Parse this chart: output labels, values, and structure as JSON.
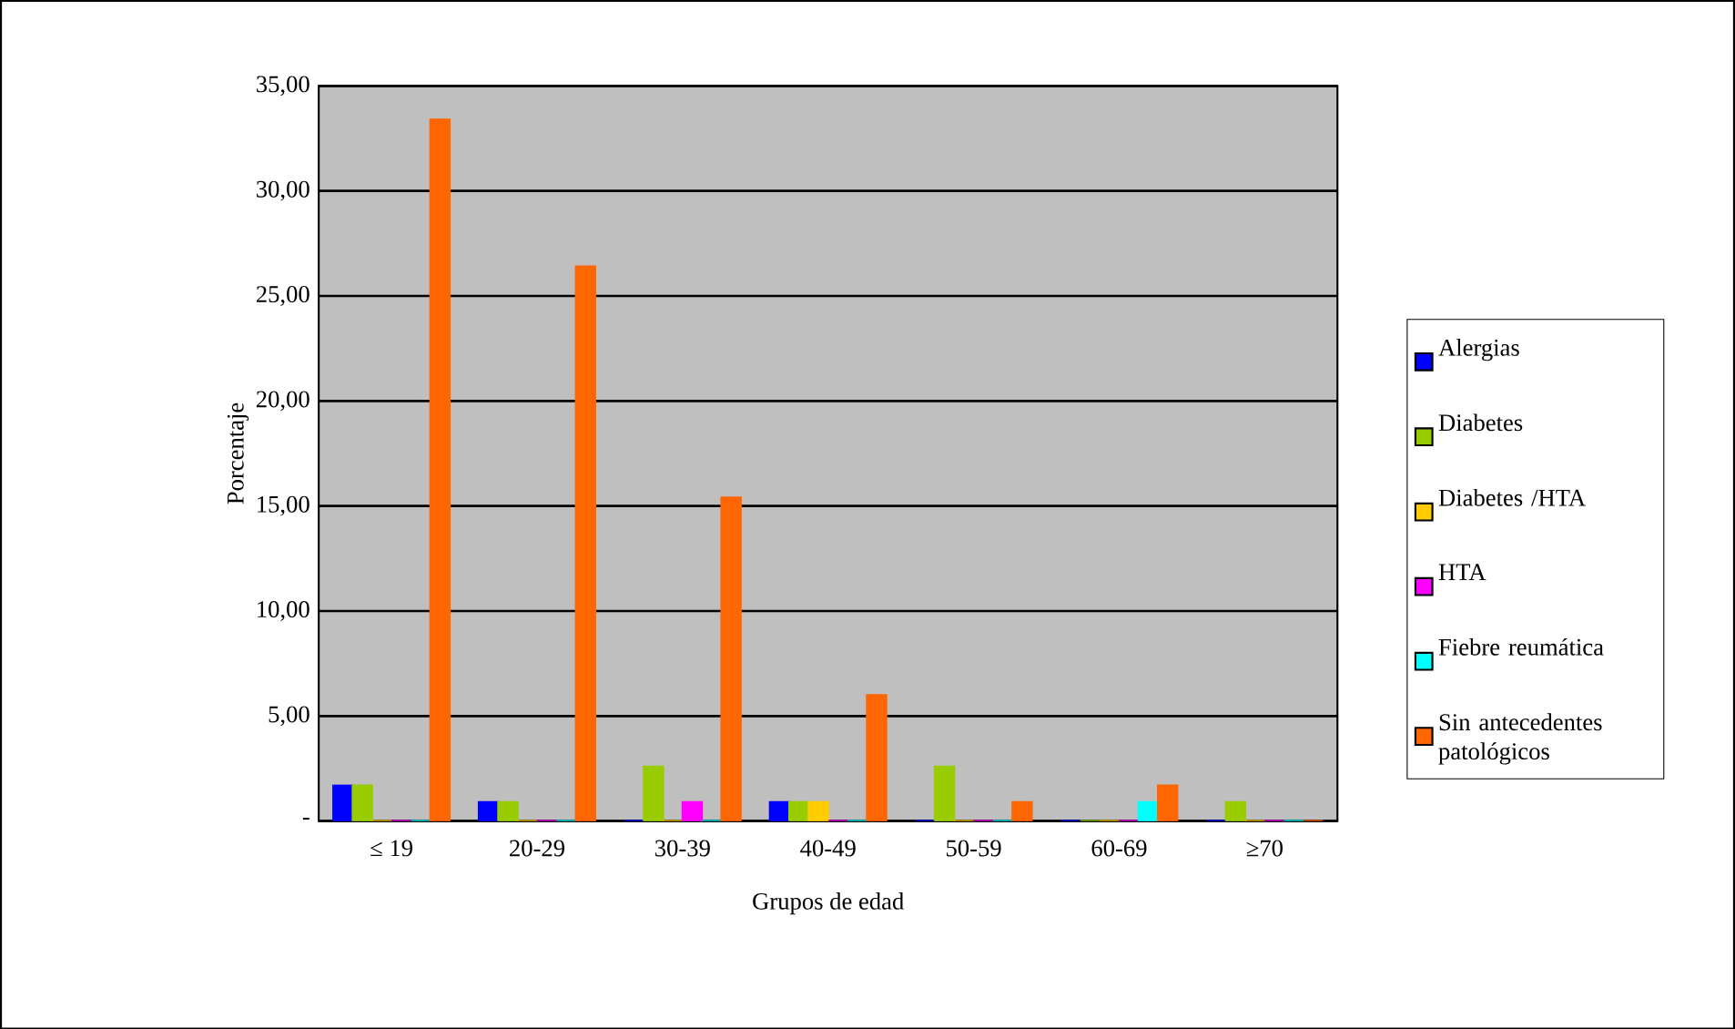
{
  "chart_data": {
    "type": "bar",
    "xlabel": "Grupos de edad",
    "ylabel": "Porcentaje",
    "categories": [
      "≤ 19",
      "20-29",
      "30-39",
      "40-49",
      "50-59",
      "60-69",
      "≥70"
    ],
    "series": [
      {
        "name": "Alergias",
        "color": "#0000ff",
        "values": [
          1.7,
          0.9,
          0,
          0.9,
          0,
          0,
          0
        ]
      },
      {
        "name": "Diabetes",
        "color": "#99cc00",
        "values": [
          1.7,
          0.9,
          2.6,
          0.9,
          2.6,
          0,
          0.9
        ]
      },
      {
        "name": "Diabetes /HTA",
        "color": "#ffcc00",
        "values": [
          0,
          0,
          0,
          0.9,
          0,
          0,
          0
        ]
      },
      {
        "name": "HTA",
        "color": "#ff00ff",
        "values": [
          0,
          0,
          0.9,
          0,
          0,
          0,
          0
        ]
      },
      {
        "name": "Fiebre reumática",
        "color": "#00ffff",
        "values": [
          0,
          0,
          0,
          0,
          0,
          0.9,
          0
        ]
      },
      {
        "name": "Sin antecedentes patológicos",
        "color": "#ff6600",
        "values": [
          33.4,
          26.4,
          15.4,
          6.0,
          0.9,
          1.7,
          0
        ]
      }
    ],
    "ylim": [
      0,
      35
    ],
    "yticks": [
      {
        "value": 0,
        "label": "-"
      },
      {
        "value": 5,
        "label": "5,00"
      },
      {
        "value": 10,
        "label": "10,00"
      },
      {
        "value": 15,
        "label": "15,00"
      },
      {
        "value": 20,
        "label": "20,00"
      },
      {
        "value": 25,
        "label": "25,00"
      },
      {
        "value": 30,
        "label": "30,00"
      },
      {
        "value": 35,
        "label": "35,00"
      }
    ],
    "grid": "y",
    "legend": "right"
  }
}
